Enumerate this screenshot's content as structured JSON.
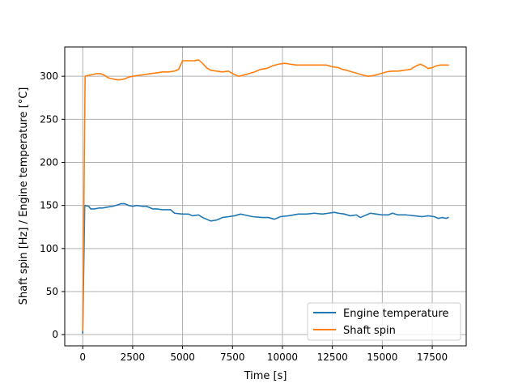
{
  "chart_data": {
    "type": "line",
    "xlabel": "Time [s]",
    "ylabel": "Shaft spin [Hz] / Engine temperature [°C]",
    "xlim": [
      -900,
      19200
    ],
    "ylim": [
      -13,
      334
    ],
    "x_ticks": [
      0,
      2500,
      5000,
      7500,
      10000,
      12500,
      15000,
      17500
    ],
    "y_ticks": [
      0,
      50,
      100,
      150,
      200,
      250,
      300
    ],
    "grid": true,
    "legend_placement": "lower-right",
    "series": [
      {
        "name": "Engine temperature",
        "color": "#1f77b4",
        "points": [
          [
            0,
            2
          ],
          [
            100,
            150
          ],
          [
            300,
            149
          ],
          [
            400,
            146
          ],
          [
            600,
            146
          ],
          [
            800,
            147
          ],
          [
            1000,
            147
          ],
          [
            1200,
            148
          ],
          [
            1500,
            149
          ],
          [
            1800,
            151
          ],
          [
            1900,
            152
          ],
          [
            2100,
            152
          ],
          [
            2300,
            150
          ],
          [
            2500,
            149
          ],
          [
            2700,
            150
          ],
          [
            3000,
            149
          ],
          [
            3200,
            149
          ],
          [
            3500,
            146
          ],
          [
            3700,
            146
          ],
          [
            4000,
            145
          ],
          [
            4400,
            145
          ],
          [
            4500,
            143
          ],
          [
            4600,
            141
          ],
          [
            5000,
            140
          ],
          [
            5300,
            140
          ],
          [
            5500,
            138
          ],
          [
            5800,
            139
          ],
          [
            6000,
            136
          ],
          [
            6200,
            134
          ],
          [
            6400,
            132
          ],
          [
            6700,
            133
          ],
          [
            7000,
            136
          ],
          [
            7300,
            137
          ],
          [
            7600,
            138
          ],
          [
            7900,
            140
          ],
          [
            8100,
            139
          ],
          [
            8500,
            137
          ],
          [
            9000,
            136
          ],
          [
            9300,
            136
          ],
          [
            9600,
            134
          ],
          [
            9900,
            137
          ],
          [
            10300,
            138
          ],
          [
            10800,
            140
          ],
          [
            11200,
            140
          ],
          [
            11600,
            141
          ],
          [
            12000,
            140
          ],
          [
            12300,
            141
          ],
          [
            12600,
            142
          ],
          [
            12800,
            141
          ],
          [
            13100,
            140
          ],
          [
            13400,
            138
          ],
          [
            13700,
            139
          ],
          [
            13900,
            136
          ],
          [
            14100,
            138
          ],
          [
            14400,
            141
          ],
          [
            14700,
            140
          ],
          [
            15000,
            139
          ],
          [
            15300,
            139
          ],
          [
            15500,
            141
          ],
          [
            15800,
            139
          ],
          [
            16200,
            139
          ],
          [
            16600,
            138
          ],
          [
            17000,
            137
          ],
          [
            17300,
            138
          ],
          [
            17600,
            137
          ],
          [
            17800,
            135
          ],
          [
            18000,
            136
          ],
          [
            18200,
            135
          ],
          [
            18300,
            136
          ]
        ]
      },
      {
        "name": "Shaft spin",
        "color": "#ff7f0e",
        "points": [
          [
            0,
            5
          ],
          [
            120,
            300
          ],
          [
            300,
            301
          ],
          [
            500,
            302
          ],
          [
            700,
            303
          ],
          [
            900,
            303
          ],
          [
            1100,
            301
          ],
          [
            1300,
            298
          ],
          [
            1500,
            297
          ],
          [
            1700,
            296
          ],
          [
            1900,
            296
          ],
          [
            2100,
            297
          ],
          [
            2300,
            299
          ],
          [
            2500,
            300
          ],
          [
            2800,
            301
          ],
          [
            3100,
            302
          ],
          [
            3400,
            303
          ],
          [
            3700,
            304
          ],
          [
            4000,
            305
          ],
          [
            4300,
            305
          ],
          [
            4600,
            306
          ],
          [
            4800,
            308
          ],
          [
            5000,
            318
          ],
          [
            5300,
            318
          ],
          [
            5600,
            318
          ],
          [
            5800,
            319
          ],
          [
            6000,
            315
          ],
          [
            6200,
            310
          ],
          [
            6400,
            307
          ],
          [
            6700,
            306
          ],
          [
            7000,
            305
          ],
          [
            7300,
            306
          ],
          [
            7600,
            302
          ],
          [
            7800,
            300
          ],
          [
            8000,
            301
          ],
          [
            8300,
            303
          ],
          [
            8600,
            305
          ],
          [
            8900,
            308
          ],
          [
            9200,
            309
          ],
          [
            9500,
            312
          ],
          [
            9800,
            314
          ],
          [
            10100,
            315
          ],
          [
            10400,
            314
          ],
          [
            10700,
            313
          ],
          [
            11000,
            313
          ],
          [
            11300,
            313
          ],
          [
            11600,
            313
          ],
          [
            11900,
            313
          ],
          [
            12200,
            313
          ],
          [
            12500,
            311
          ],
          [
            12800,
            310
          ],
          [
            13000,
            308
          ],
          [
            13200,
            307
          ],
          [
            13500,
            305
          ],
          [
            13800,
            303
          ],
          [
            14100,
            301
          ],
          [
            14300,
            300
          ],
          [
            14600,
            301
          ],
          [
            14900,
            303
          ],
          [
            15200,
            305
          ],
          [
            15500,
            306
          ],
          [
            15800,
            306
          ],
          [
            16100,
            307
          ],
          [
            16400,
            308
          ],
          [
            16700,
            312
          ],
          [
            16900,
            314
          ],
          [
            17100,
            312
          ],
          [
            17300,
            309
          ],
          [
            17500,
            310
          ],
          [
            17700,
            312
          ],
          [
            17900,
            313
          ],
          [
            18300,
            313
          ]
        ]
      }
    ]
  }
}
